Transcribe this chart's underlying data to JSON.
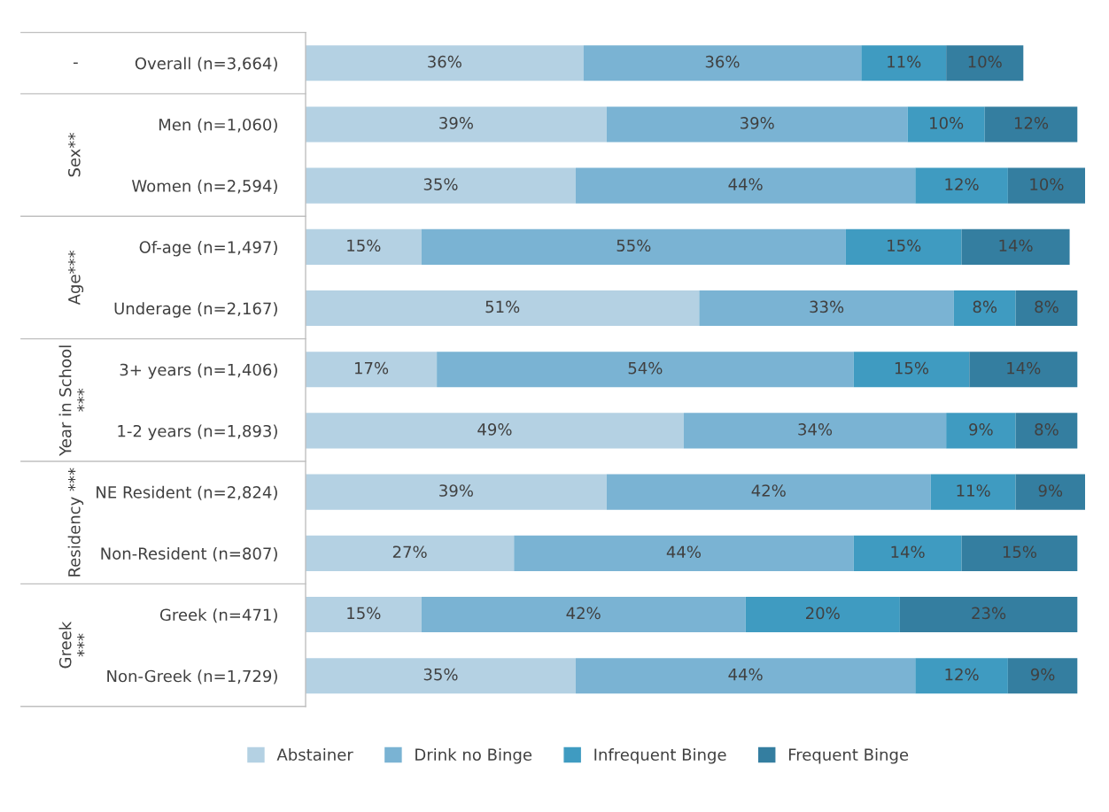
{
  "chart_data": {
    "type": "bar",
    "orientation": "horizontal",
    "stacked": true,
    "legend": "bottom",
    "grid": false,
    "categories": [
      "Overall (n=3,664)",
      "Men (n=1,060)",
      "Women (n=2,594)",
      "Of-age (n=1,497)",
      "Underage (n=2,167)",
      "3+ years (n=1,406)",
      "1-2 years (n=1,893)",
      "NE Resident (n=2,824)",
      "Non-Resident (n=807)",
      "Greek (n=471)",
      "Non-Greek (n=1,729)"
    ],
    "series": [
      {
        "name": "Abstainer",
        "color": "#b4d1e3",
        "values": [
          36,
          39,
          35,
          15,
          51,
          17,
          49,
          39,
          27,
          15,
          35
        ],
        "value_labels": [
          "36%",
          "39%",
          "35%",
          "15%",
          "51%",
          "17%",
          "49%",
          "39%",
          "27%",
          "15%",
          "35%"
        ]
      },
      {
        "name": "Drink no Binge",
        "color": "#7ab3d3",
        "values": [
          36,
          39,
          44,
          55,
          33,
          54,
          34,
          42,
          44,
          42,
          44
        ],
        "value_labels": [
          "36%",
          "39%",
          "44%",
          "55%",
          "33%",
          "54%",
          "34%",
          "42%",
          "44%",
          "42%",
          "44%"
        ]
      },
      {
        "name": "Infrequent Binge",
        "color": "#3f9bc1",
        "values": [
          11,
          10,
          12,
          15,
          8,
          15,
          9,
          11,
          14,
          20,
          12
        ],
        "value_labels": [
          "11%",
          "10%",
          "12%",
          "15%",
          "8%",
          "15%",
          "9%",
          "11%",
          "14%",
          "20%",
          "12%"
        ]
      },
      {
        "name": "Frequent Binge",
        "color": "#347ea0",
        "values": [
          10,
          12,
          10,
          14,
          8,
          14,
          8,
          9,
          15,
          23,
          9
        ],
        "value_labels": [
          "10%",
          "12%",
          "10%",
          "14%",
          "8%",
          "14%",
          "8%",
          "9%",
          "15%",
          "23%",
          "9%"
        ]
      }
    ],
    "annotations": [
      "-",
      "Sex**",
      "Age***",
      "Year in School\n***",
      "Residency ***",
      "Greek\n***"
    ]
  }
}
